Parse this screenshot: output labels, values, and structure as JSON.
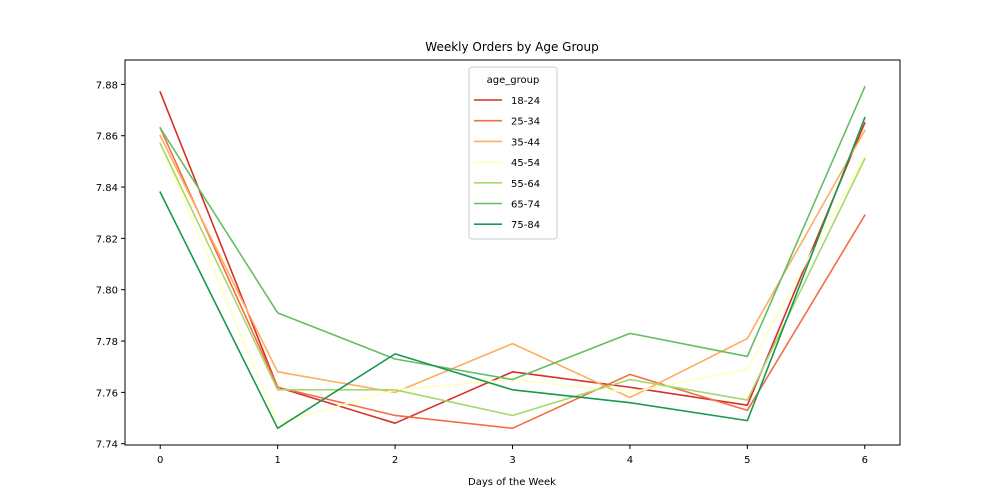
{
  "chart_data": {
    "type": "line",
    "title": "Weekly Orders by Age Group",
    "xlabel": "Days of the Week",
    "ylabel": "",
    "x": [
      0,
      1,
      2,
      3,
      4,
      5,
      6
    ],
    "x_ticks": [
      "0",
      "1",
      "2",
      "3",
      "4",
      "5",
      "6"
    ],
    "xlim": [
      -0.3,
      6.3
    ],
    "ylim": [
      7.7395,
      7.8895
    ],
    "y_ticks": [
      7.74,
      7.76,
      7.78,
      7.8,
      7.82,
      7.84,
      7.86,
      7.88
    ],
    "y_tick_labels": [
      "7.74",
      "7.76",
      "7.78",
      "7.80",
      "7.82",
      "7.84",
      "7.86",
      "7.88"
    ],
    "grid": false,
    "legend": {
      "title": "age_group",
      "placement": "top-center"
    },
    "series": [
      {
        "name": "18-24",
        "color": "#d73027",
        "values": [
          7.877,
          7.762,
          7.748,
          7.768,
          7.762,
          7.755,
          7.865
        ]
      },
      {
        "name": "25-34",
        "color": "#f46d43",
        "values": [
          7.863,
          7.762,
          7.751,
          7.746,
          7.767,
          7.753,
          7.829
        ]
      },
      {
        "name": "35-44",
        "color": "#fdae61",
        "values": [
          7.86,
          7.768,
          7.76,
          7.779,
          7.758,
          7.781,
          7.862
        ]
      },
      {
        "name": "45-54",
        "color": "#ffffbf",
        "values": [
          7.857,
          7.748,
          7.761,
          7.765,
          7.76,
          7.769,
          7.852
        ]
      },
      {
        "name": "55-64",
        "color": "#a6d96a",
        "values": [
          7.857,
          7.761,
          7.761,
          7.751,
          7.765,
          7.757,
          7.851
        ]
      },
      {
        "name": "65-74",
        "color": "#66bd63",
        "values": [
          7.863,
          7.791,
          7.773,
          7.765,
          7.783,
          7.774,
          7.879
        ]
      },
      {
        "name": "75-84",
        "color": "#1a9850",
        "values": [
          7.838,
          7.746,
          7.775,
          7.761,
          7.756,
          7.749,
          7.867
        ]
      }
    ]
  }
}
